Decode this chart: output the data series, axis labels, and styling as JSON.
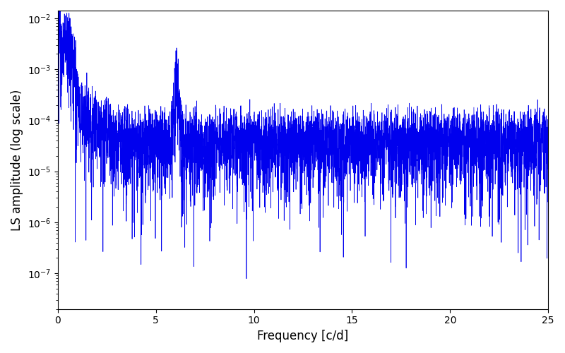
{
  "xlabel": "Frequency [c/d]",
  "ylabel": "LS amplitude (log scale)",
  "xlim": [
    0,
    25
  ],
  "ylim_log": [
    -7.7,
    -1.85
  ],
  "line_color": "#0000ee",
  "line_width": 0.5,
  "background_color": "#ffffff",
  "seed": 12345,
  "n_points": 5000,
  "freq_max": 25.0
}
